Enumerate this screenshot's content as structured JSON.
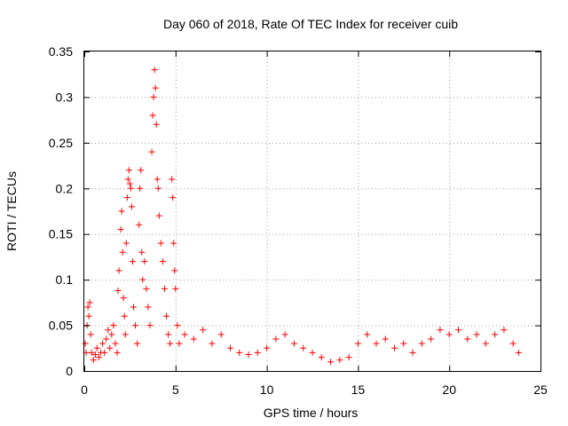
{
  "chart_data": {
    "type": "scatter",
    "title": "Day 060 of 2018, Rate Of TEC Index for receiver cuib",
    "xlabel": "GPS time / hours",
    "ylabel": "ROTI / TECUs",
    "xlim": [
      0,
      25
    ],
    "ylim": [
      0,
      0.35
    ],
    "xticks": [
      0,
      5,
      10,
      15,
      20,
      25
    ],
    "xtick_labels": [
      "0",
      "5",
      "10",
      "15",
      "20",
      "25"
    ],
    "yticks": [
      0,
      0.05,
      0.1,
      0.15,
      0.2,
      0.25,
      0.3,
      0.35
    ],
    "ytick_labels": [
      "0",
      "0.05",
      "0.1",
      "0.15",
      "0.2",
      "0.25",
      "0.3",
      "0.35"
    ],
    "grid": true,
    "marker": "plus",
    "marker_color": "#ff0000",
    "series": [
      {
        "points": [
          [
            0.05,
            0.03
          ],
          [
            0.1,
            0.02
          ],
          [
            0.15,
            0.05
          ],
          [
            0.2,
            0.07
          ],
          [
            0.25,
            0.06
          ],
          [
            0.3,
            0.075
          ],
          [
            0.35,
            0.04
          ],
          [
            0.4,
            0.02
          ],
          [
            0.5,
            0.012
          ],
          [
            0.6,
            0.018
          ],
          [
            0.7,
            0.025
          ],
          [
            0.8,
            0.015
          ],
          [
            0.9,
            0.02
          ],
          [
            1.0,
            0.03
          ],
          [
            1.1,
            0.02
          ],
          [
            1.2,
            0.035
          ],
          [
            1.3,
            0.045
          ],
          [
            1.4,
            0.025
          ],
          [
            1.5,
            0.04
          ],
          [
            1.6,
            0.05
          ],
          [
            1.7,
            0.03
          ],
          [
            1.8,
            0.02
          ],
          [
            1.85,
            0.088
          ],
          [
            1.9,
            0.11
          ],
          [
            2.0,
            0.155
          ],
          [
            2.05,
            0.175
          ],
          [
            2.1,
            0.13
          ],
          [
            2.15,
            0.08
          ],
          [
            2.2,
            0.06
          ],
          [
            2.25,
            0.04
          ],
          [
            2.3,
            0.14
          ],
          [
            2.35,
            0.19
          ],
          [
            2.4,
            0.21
          ],
          [
            2.45,
            0.22
          ],
          [
            2.5,
            0.205
          ],
          [
            2.55,
            0.2
          ],
          [
            2.6,
            0.18
          ],
          [
            2.65,
            0.12
          ],
          [
            2.7,
            0.07
          ],
          [
            2.8,
            0.05
          ],
          [
            2.9,
            0.03
          ],
          [
            3.0,
            0.16
          ],
          [
            3.05,
            0.2
          ],
          [
            3.1,
            0.22
          ],
          [
            3.15,
            0.13
          ],
          [
            3.2,
            0.1
          ],
          [
            3.3,
            0.12
          ],
          [
            3.4,
            0.09
          ],
          [
            3.5,
            0.07
          ],
          [
            3.6,
            0.05
          ],
          [
            3.7,
            0.24
          ],
          [
            3.75,
            0.28
          ],
          [
            3.8,
            0.3
          ],
          [
            3.85,
            0.33
          ],
          [
            3.9,
            0.31
          ],
          [
            3.95,
            0.27
          ],
          [
            4.0,
            0.21
          ],
          [
            4.05,
            0.2
          ],
          [
            4.1,
            0.17
          ],
          [
            4.2,
            0.14
          ],
          [
            4.3,
            0.12
          ],
          [
            4.4,
            0.09
          ],
          [
            4.5,
            0.06
          ],
          [
            4.6,
            0.04
          ],
          [
            4.7,
            0.03
          ],
          [
            4.8,
            0.21
          ],
          [
            4.85,
            0.19
          ],
          [
            4.9,
            0.14
          ],
          [
            4.95,
            0.11
          ],
          [
            5.0,
            0.09
          ],
          [
            5.1,
            0.05
          ],
          [
            5.2,
            0.03
          ],
          [
            5.5,
            0.04
          ],
          [
            6.0,
            0.035
          ],
          [
            6.5,
            0.045
          ],
          [
            7.0,
            0.03
          ],
          [
            7.5,
            0.04
          ],
          [
            8.0,
            0.025
          ],
          [
            8.5,
            0.02
          ],
          [
            9.0,
            0.018
          ],
          [
            9.5,
            0.02
          ],
          [
            10.0,
            0.025
          ],
          [
            10.5,
            0.035
          ],
          [
            11.0,
            0.04
          ],
          [
            11.5,
            0.03
          ],
          [
            12.0,
            0.025
          ],
          [
            12.5,
            0.02
          ],
          [
            13.0,
            0.015
          ],
          [
            13.5,
            0.01
          ],
          [
            14.0,
            0.012
          ],
          [
            14.5,
            0.015
          ],
          [
            15.0,
            0.03
          ],
          [
            15.5,
            0.04
          ],
          [
            16.0,
            0.03
          ],
          [
            16.5,
            0.035
          ],
          [
            17.0,
            0.025
          ],
          [
            17.5,
            0.03
          ],
          [
            18.0,
            0.02
          ],
          [
            18.5,
            0.03
          ],
          [
            19.0,
            0.035
          ],
          [
            19.5,
            0.045
          ],
          [
            20.0,
            0.04
          ],
          [
            20.5,
            0.045
          ],
          [
            21.0,
            0.035
          ],
          [
            21.5,
            0.04
          ],
          [
            22.0,
            0.03
          ],
          [
            22.5,
            0.04
          ],
          [
            23.0,
            0.045
          ],
          [
            23.5,
            0.03
          ],
          [
            23.8,
            0.02
          ]
        ]
      }
    ]
  }
}
